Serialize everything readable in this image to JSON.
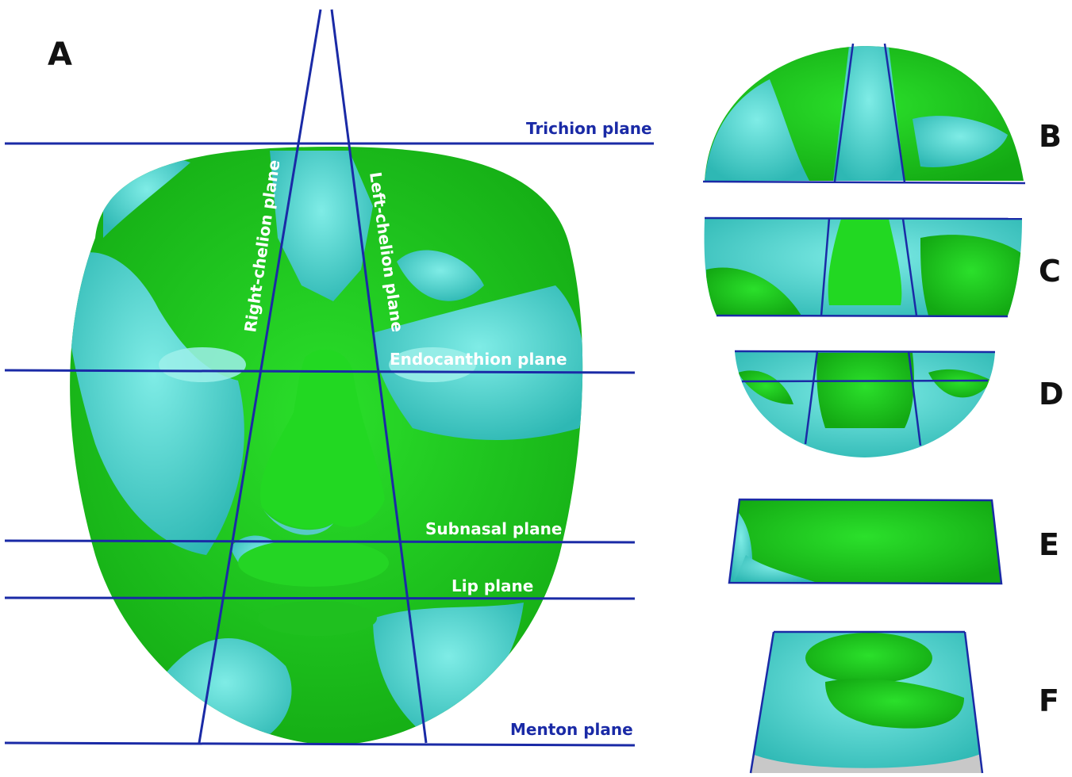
{
  "panels": {
    "A": "A",
    "B": "B",
    "C": "C",
    "D": "D",
    "E": "E",
    "F": "F"
  },
  "planes": {
    "trichion": "Trichion plane",
    "endocanthion": "Endocanthion plane",
    "subnasal": "Subnasal plane",
    "lip": "Lip plane",
    "menton": "Menton plane",
    "right_chelion": "Right-chelion plane",
    "left_chelion": "Left-chelion plane"
  },
  "colors": {
    "plane_line": "#1a2aa6",
    "surface_green": "#1fcc1f",
    "surface_cyan": "#3fd6d0",
    "label_dark": "#1a2aa6",
    "label_light": "#ffffff",
    "letter": "#111111"
  }
}
